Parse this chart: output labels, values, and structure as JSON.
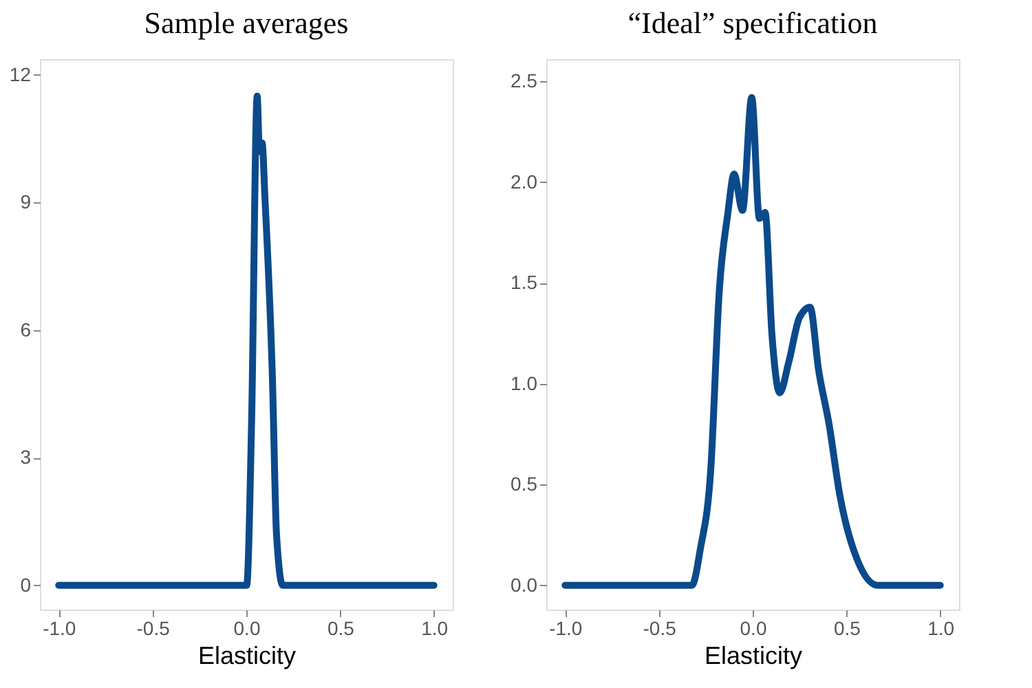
{
  "chart_data": [
    {
      "type": "line",
      "title": "Sample averages",
      "xlabel": "Elasticity",
      "x": [
        -1.0,
        0.002,
        0.028,
        0.058,
        0.07,
        0.084,
        0.1,
        0.139,
        0.161,
        0.194,
        1.0
      ],
      "series": [
        {
          "color": "#0b4a8b",
          "values": [
            0,
            0,
            3.8,
            11.5,
            10.2,
            10.4,
            9.05,
            4.9,
            1.2,
            0,
            0
          ]
        }
      ],
      "xlim": [
        -1.1,
        1.1
      ],
      "ylim": [
        -0.57,
        12.37
      ],
      "xticks": [
        {
          "value": -1,
          "label": "-1.0"
        },
        {
          "value": -0.5,
          "label": "-0.5"
        },
        {
          "value": 0,
          "label": "0.0"
        },
        {
          "value": 0.5,
          "label": "0.5"
        },
        {
          "value": 1,
          "label": "1.0"
        }
      ],
      "yticks": [
        0,
        3,
        6,
        9,
        12
      ],
      "grid": false,
      "line_style": "solid",
      "marker": "none"
    },
    {
      "type": "line",
      "title": "“Ideal” specification",
      "xlabel": "Elasticity",
      "x": [
        -1.0,
        -0.324,
        -0.279,
        -0.223,
        -0.178,
        -0.133,
        -0.099,
        -0.054,
        -0.005,
        0.036,
        0.066,
        0.103,
        0.144,
        0.193,
        0.25,
        0.306,
        0.351,
        0.407,
        0.464,
        0.554,
        0.667,
        1.0
      ],
      "series": [
        {
          "color": "#0b4a8b",
          "values": [
            0,
            0,
            0.18,
            0.58,
            1.46,
            1.84,
            2.04,
            1.86,
            2.42,
            1.82,
            1.85,
            1.24,
            0.955,
            1.11,
            1.33,
            1.38,
            1.07,
            0.8,
            0.45,
            0.135,
            0,
            0
          ]
        }
      ],
      "xlim": [
        -1.1,
        1.1
      ],
      "ylim": [
        -0.12,
        2.61
      ],
      "xticks": [
        {
          "value": -1,
          "label": "-1.0"
        },
        {
          "value": -0.5,
          "label": "-0.5"
        },
        {
          "value": 0,
          "label": "0.0"
        },
        {
          "value": 0.5,
          "label": "0.5"
        },
        {
          "value": 1,
          "label": "1.0"
        }
      ],
      "yticks": [
        {
          "value": 0,
          "label": "0.0"
        },
        {
          "value": 0.5,
          "label": "0.5"
        },
        {
          "value": 1,
          "label": "1.0"
        },
        {
          "value": 1.5,
          "label": "1.5"
        },
        {
          "value": 2,
          "label": "2.0"
        },
        {
          "value": 2.5,
          "label": "2.5"
        }
      ],
      "grid": false,
      "line_style": "solid",
      "marker": "none"
    }
  ]
}
